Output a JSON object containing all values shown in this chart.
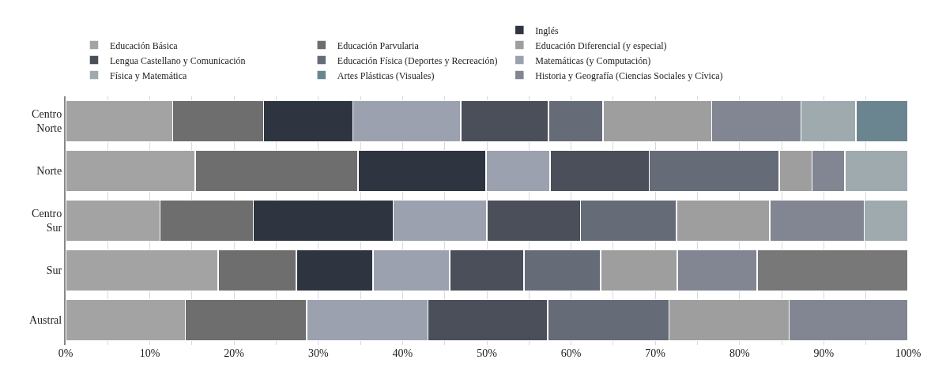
{
  "chart_data": {
    "type": "bar",
    "orientation": "horizontal",
    "stacked": true,
    "categories": [
      "Centro Norte",
      "Norte",
      "Centro Sur",
      "Sur",
      "Austral"
    ],
    "series": [
      {
        "name": "Educación Básica",
        "color": "#a3a3a3",
        "values": [
          12.7,
          15.4,
          11.2,
          18.1,
          14.2
        ]
      },
      {
        "name": "Educación Parvularia",
        "color": "#6e6e6e",
        "values": [
          10.8,
          19.3,
          11.1,
          9.3,
          14.4
        ]
      },
      {
        "name": "Inglés",
        "color": "#2e3440",
        "values": [
          10.6,
          15.2,
          16.6,
          9.1,
          null
        ]
      },
      {
        "name": "Matemáticas (y Computación)",
        "color": "#9ca1af",
        "values": [
          12.8,
          7.6,
          11.1,
          9.1,
          14.4
        ]
      },
      {
        "name": "Lengua Castellano y Comunicación",
        "color": "#4b4f5a",
        "values": [
          10.4,
          11.8,
          11.1,
          8.8,
          14.2
        ]
      },
      {
        "name": "Educación Física (Deportes y Recreación)",
        "color": "#666b78",
        "values": [
          6.5,
          15.4,
          11.4,
          9.1,
          14.4
        ]
      },
      {
        "name": "Educación Diferencial (y especial)",
        "color": "#9e9e9e",
        "values": [
          12.9,
          3.9,
          11.1,
          9.1,
          14.3
        ]
      },
      {
        "name": "Historia y Geografía (Ciencias Sociales y Cívica)",
        "color": "#828692",
        "values": [
          10.6,
          3.9,
          11.2,
          9.5,
          14.1
        ]
      },
      {
        "name": "Física y Matemática",
        "color": "#9eaaad",
        "values": [
          6.5,
          7.5,
          5.2,
          null,
          null
        ]
      },
      {
        "name": "Artes Plásticas (Visuales)",
        "color": "#6b8590",
        "values": [
          6.2,
          null,
          null,
          null,
          null
        ]
      },
      {
        "color": "#787878",
        "values": [
          null,
          null,
          null,
          17.9,
          null
        ]
      }
    ],
    "xlim": [
      0,
      100
    ],
    "xticks": [
      {
        "value": 0,
        "label": "0%"
      },
      {
        "value": 5,
        "label": null
      },
      {
        "value": 10,
        "label": "10%"
      },
      {
        "value": 15,
        "label": null
      },
      {
        "value": 20,
        "label": "20%"
      },
      {
        "value": 25,
        "label": null
      },
      {
        "value": 30,
        "label": "30%"
      },
      {
        "value": 35,
        "label": null
      },
      {
        "value": 40,
        "label": "40%"
      },
      {
        "value": 45,
        "label": null
      },
      {
        "value": 50,
        "label": "50%"
      },
      {
        "value": 55,
        "label": null
      },
      {
        "value": 60,
        "label": "60%"
      },
      {
        "value": 65,
        "label": null
      },
      {
        "value": 70,
        "label": "70%"
      },
      {
        "value": 75,
        "label": null
      },
      {
        "value": 80,
        "label": "80%"
      },
      {
        "value": 85,
        "label": null
      },
      {
        "value": 90,
        "label": "90%"
      },
      {
        "value": 95,
        "label": null
      },
      {
        "value": 100,
        "label": "100%"
      }
    ],
    "grid": "x",
    "legend": "top"
  }
}
